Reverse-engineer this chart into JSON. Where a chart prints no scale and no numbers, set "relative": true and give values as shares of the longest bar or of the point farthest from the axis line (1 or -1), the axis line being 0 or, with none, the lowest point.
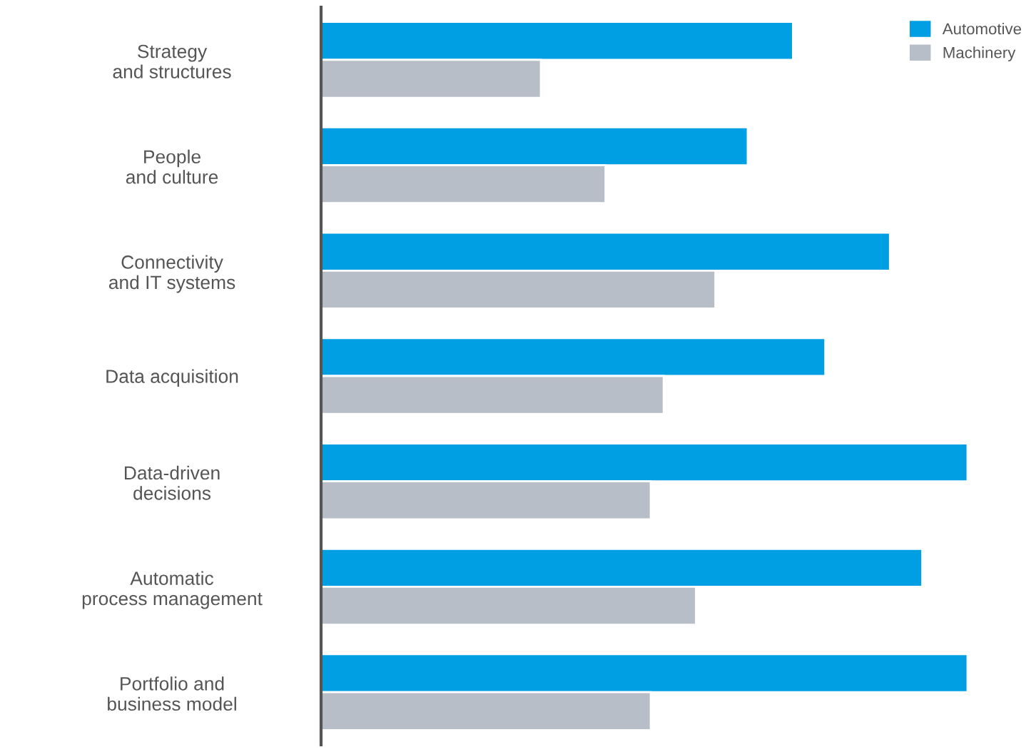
{
  "chart_data": {
    "type": "bar",
    "orientation": "horizontal",
    "relative": true,
    "categories": [
      "Strategy\nand structures",
      "People\nand culture",
      "Connectivity\nand IT systems",
      "Data acquisition",
      "Data-driven\ndecisions",
      "Automatic\nprocess management",
      "Portfolio and\nbusiness model"
    ],
    "series": [
      {
        "name": "Automotive",
        "color": "#009fe3",
        "values": [
          0.73,
          0.66,
          0.88,
          0.78,
          1.0,
          0.93,
          1.0
        ]
      },
      {
        "name": "Machinery",
        "color": "#b7bec7",
        "values": [
          0.34,
          0.44,
          0.61,
          0.53,
          0.51,
          0.58,
          0.51
        ]
      }
    ],
    "legend": "top right",
    "grid": false
  }
}
